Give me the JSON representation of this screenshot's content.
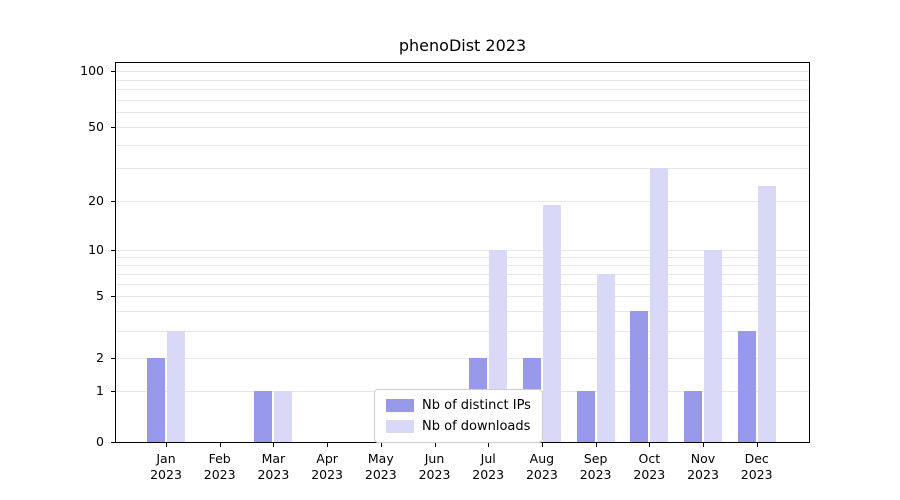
{
  "title": "phenoDist 2023",
  "colors": {
    "ips": "#9999ec",
    "downloads": "#d9d9f7",
    "grid": "#e7e7e7",
    "spine": "#000000",
    "legend_border": "#cccccc"
  },
  "legend": {
    "position": "lower center inside plot",
    "items": [
      {
        "label": "Nb of distinct IPs",
        "series": "ips"
      },
      {
        "label": "Nb of downloads",
        "series": "downloads"
      }
    ]
  },
  "chart_data": {
    "type": "bar",
    "title": "phenoDist 2023",
    "xlabel": "",
    "ylabel": "",
    "yscale": "symlog",
    "ylim": [
      0,
      110
    ],
    "grid": "horizontal minor+major, light gray",
    "legend_position": "lower center",
    "y_ticks": [
      100,
      50,
      20,
      10,
      5,
      2,
      1,
      0
    ],
    "categories": [
      "Jan 2023",
      "Feb 2023",
      "Mar 2023",
      "Apr 2023",
      "May 2023",
      "Jun 2023",
      "Jul 2023",
      "Aug 2023",
      "Sep 2023",
      "Oct 2023",
      "Nov 2023",
      "Dec 2023"
    ],
    "series": [
      {
        "name": "Nb of distinct IPs",
        "values": [
          2,
          0,
          1,
          0,
          0,
          0,
          2,
          2,
          1,
          4,
          1,
          3
        ]
      },
      {
        "name": "Nb of downloads",
        "values": [
          3,
          0,
          1,
          0,
          0,
          0,
          10,
          19,
          7,
          30,
          10,
          24
        ]
      }
    ]
  }
}
